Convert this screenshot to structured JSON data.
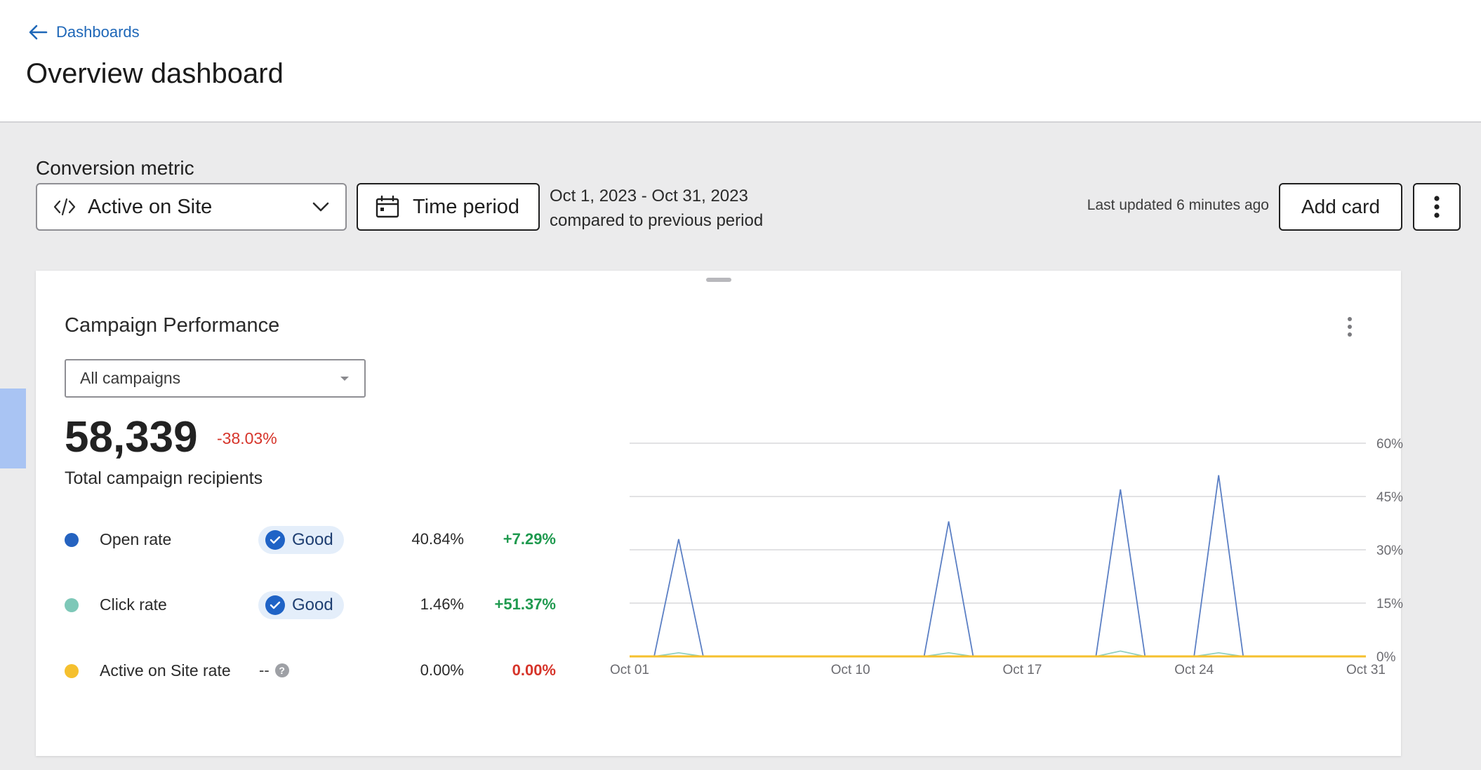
{
  "header": {
    "back_label": "Dashboards",
    "title": "Overview dashboard"
  },
  "toolbar": {
    "conversion_label": "Conversion metric",
    "metric_value": "Active on Site",
    "time_period_label": "Time period",
    "date_range": "Oct 1, 2023 - Oct 31, 2023",
    "compare_text": "compared to previous period",
    "last_updated": "Last updated 6 minutes ago",
    "add_card_label": "Add card"
  },
  "card": {
    "title": "Campaign Performance",
    "campaign_filter": "All campaigns",
    "total_value": "58,339",
    "total_change": "-38.03%",
    "total_label": "Total campaign recipients",
    "metrics": [
      {
        "name": "Open rate",
        "badge": "Good",
        "value": "40.84%",
        "change": "+7.29%",
        "dot_color": "#2563c0",
        "change_color": "#1f9a4f"
      },
      {
        "name": "Click rate",
        "badge": "Good",
        "value": "1.46%",
        "change": "+51.37%",
        "dot_color": "#7ec8b8",
        "change_color": "#1f9a4f"
      },
      {
        "name": "Active on Site rate",
        "badge": "--",
        "value": "0.00%",
        "change": "0.00%",
        "dot_color": "#f5c02e",
        "change_color": "#d6342a"
      }
    ]
  },
  "chart_data": {
    "type": "line",
    "x": [
      "Oct 01",
      "Oct 02",
      "Oct 03",
      "Oct 04",
      "Oct 05",
      "Oct 06",
      "Oct 07",
      "Oct 08",
      "Oct 09",
      "Oct 10",
      "Oct 11",
      "Oct 12",
      "Oct 13",
      "Oct 14",
      "Oct 15",
      "Oct 16",
      "Oct 17",
      "Oct 18",
      "Oct 19",
      "Oct 20",
      "Oct 21",
      "Oct 22",
      "Oct 23",
      "Oct 24",
      "Oct 25",
      "Oct 26",
      "Oct 27",
      "Oct 28",
      "Oct 29",
      "Oct 30",
      "Oct 31"
    ],
    "x_tick_labels": [
      "Oct 01",
      "Oct 10",
      "Oct 17",
      "Oct 24",
      "Oct 31"
    ],
    "y_tick_labels": [
      "60%",
      "45%",
      "30%",
      "15%",
      "0%"
    ],
    "ylim": [
      0,
      60
    ],
    "y_ticks": [
      0,
      15,
      30,
      45,
      60
    ],
    "grid": true,
    "axis_side": "right",
    "series": [
      {
        "name": "Open rate",
        "color": "#5b7fc4",
        "values": [
          0,
          0,
          33,
          0,
          0,
          0,
          0,
          0,
          0,
          0,
          0,
          0,
          0,
          38,
          0,
          0,
          0,
          0,
          0,
          0,
          47,
          0,
          0,
          0,
          51,
          0,
          0,
          0,
          0,
          0,
          0
        ]
      },
      {
        "name": "Click rate",
        "color": "#8fd0c0",
        "values": [
          0,
          0,
          1,
          0,
          0,
          0,
          0,
          0,
          0,
          0,
          0,
          0,
          0,
          1,
          0,
          0,
          0,
          0,
          0,
          0,
          1.5,
          0,
          0,
          0,
          1,
          0,
          0,
          0,
          0,
          0,
          0
        ]
      },
      {
        "name": "Active on Site rate",
        "color": "#f5c02e",
        "values": [
          0,
          0,
          0,
          0,
          0,
          0,
          0,
          0,
          0,
          0,
          0,
          0,
          0,
          0,
          0,
          0,
          0,
          0,
          0,
          0,
          0,
          0,
          0,
          0,
          0,
          0,
          0,
          0,
          0,
          0,
          0
        ]
      }
    ]
  }
}
